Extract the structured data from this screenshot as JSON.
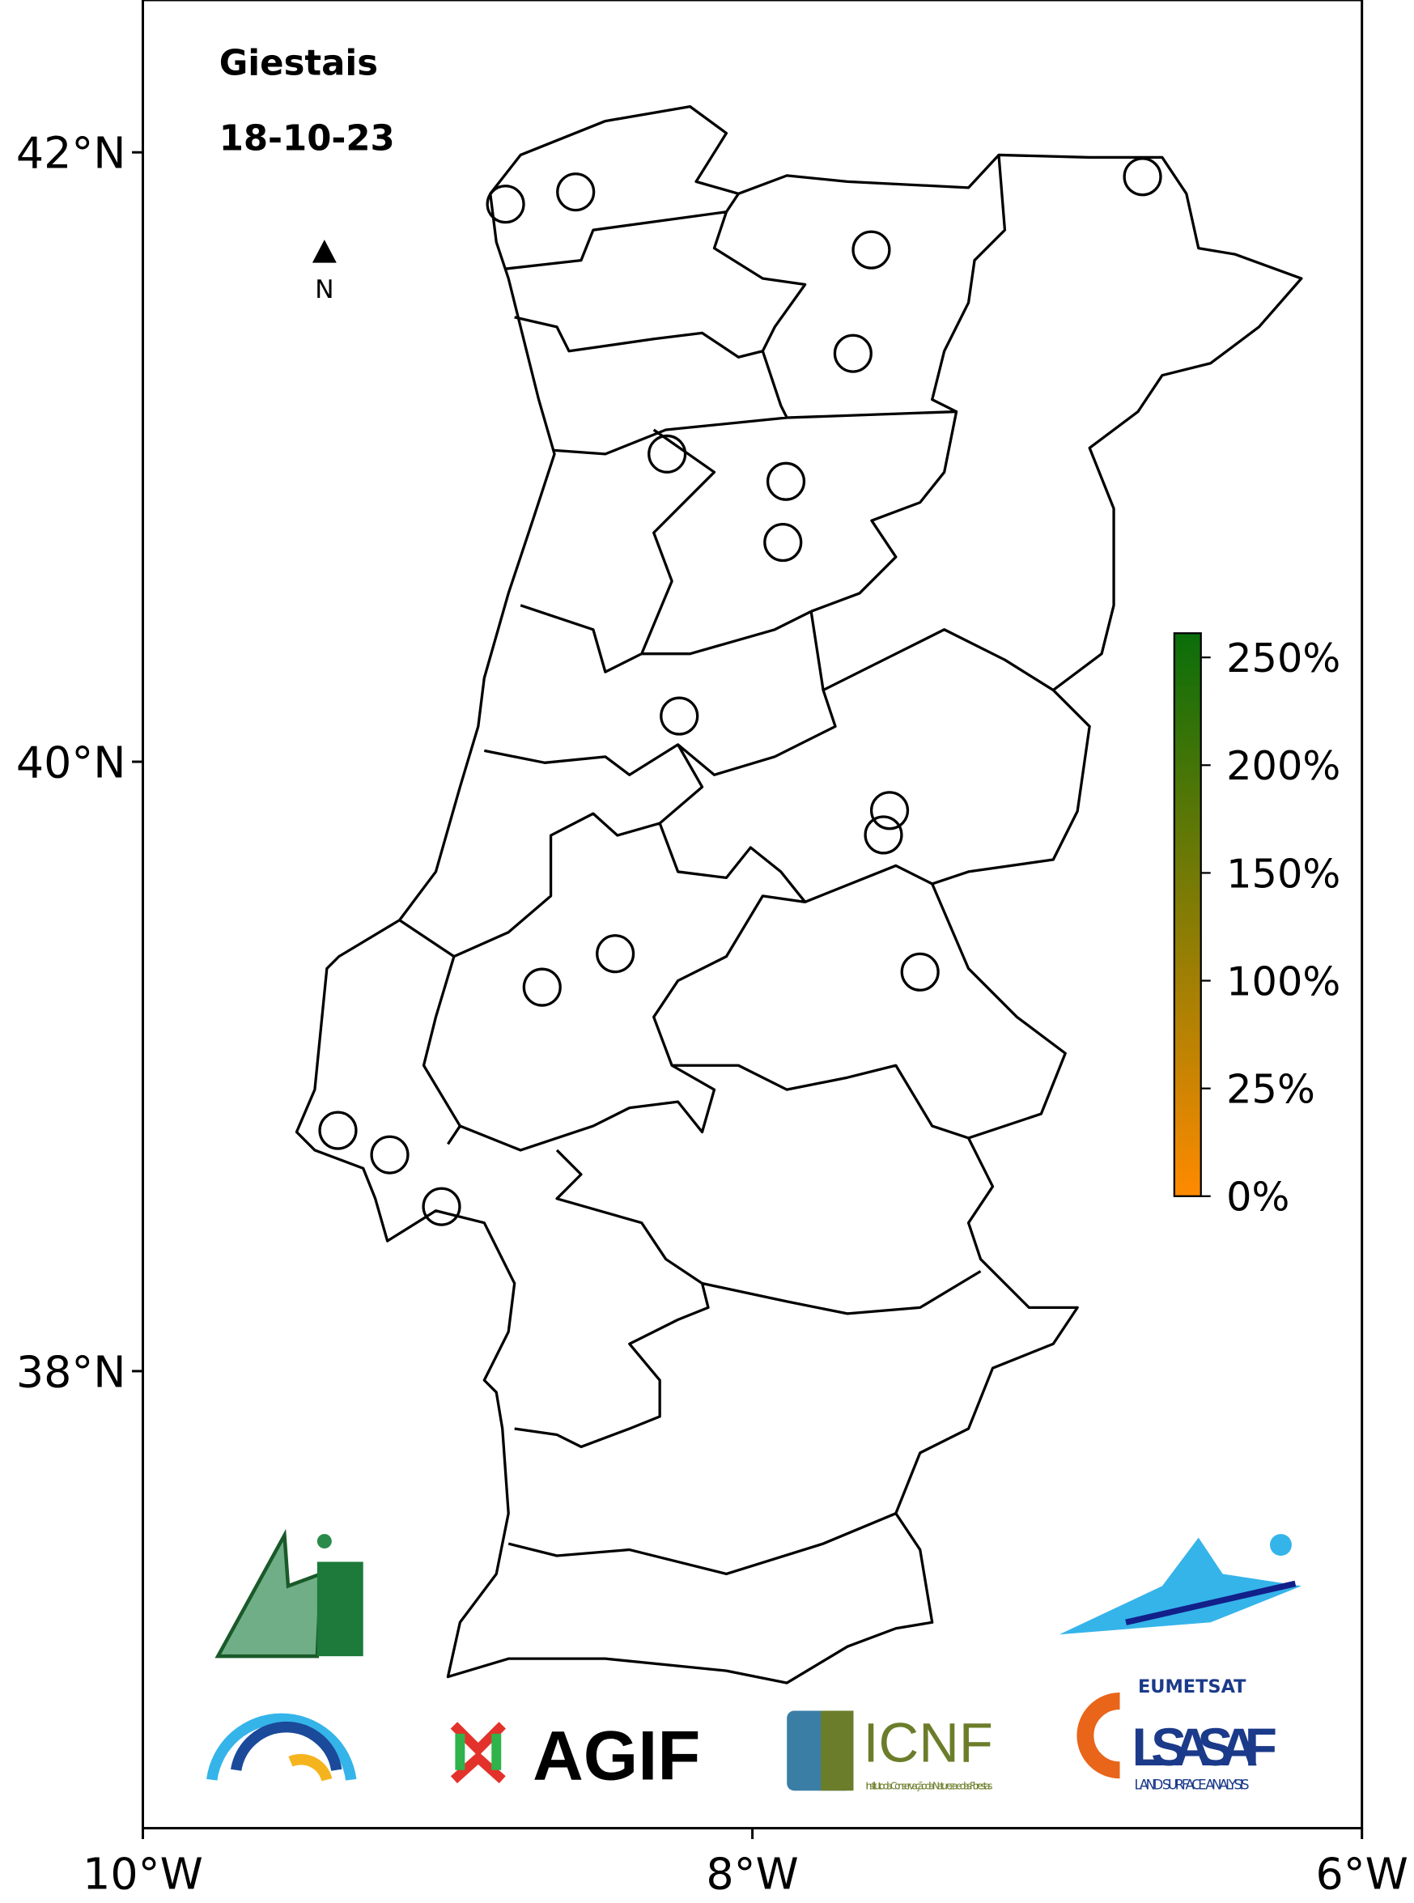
{
  "chart_data": {
    "type": "map",
    "title": "Giestais",
    "subtitle": "18-10-23",
    "north": "N",
    "x": [
      -8.81,
      -8.58,
      -7.61,
      -7.67,
      -6.72,
      -8.28,
      -7.89,
      -7.9,
      -8.24,
      -7.55,
      -7.57,
      -8.45,
      -8.69,
      -7.45,
      -9.36,
      -9.19,
      -9.02
    ],
    "values": [
      41.83,
      41.87,
      41.68,
      41.34,
      41.92,
      41.01,
      40.92,
      40.72,
      40.15,
      39.84,
      39.76,
      39.37,
      39.26,
      39.31,
      38.79,
      38.71,
      38.54
    ],
    "xlim": [
      -10,
      -6
    ],
    "ylim": [
      36.5,
      42.5
    ],
    "xticks": [
      {
        "value": -10,
        "label": "10°W"
      },
      {
        "value": -8,
        "label": "8°W"
      },
      {
        "value": -6,
        "label": "6°W"
      }
    ],
    "yticks": [
      {
        "value": 38,
        "label": "38°N"
      },
      {
        "value": 40,
        "label": "40°N"
      },
      {
        "value": 42,
        "label": "42°N"
      }
    ],
    "colorbar": {
      "ticks": [
        {
          "value": 0,
          "label": "0%"
        },
        {
          "value": 25,
          "label": "25%"
        },
        {
          "value": 100,
          "label": "100%"
        },
        {
          "value": 150,
          "label": "150%"
        },
        {
          "value": 200,
          "label": "200%"
        },
        {
          "value": 250,
          "label": "250%"
        }
      ],
      "colors": [
        "#ff8a00",
        "#0a6e0a"
      ]
    }
  },
  "logos": {
    "agif": "AGIF",
    "icnf": "ICNF",
    "icnf_sub": "Instituto da Conservação da Natureza e das Florestas",
    "eumetsat": "EUMETSAT",
    "lsasaf": "LSA SAF",
    "lsasaf_sub": "LAND SURFACE ANALYSIS"
  }
}
